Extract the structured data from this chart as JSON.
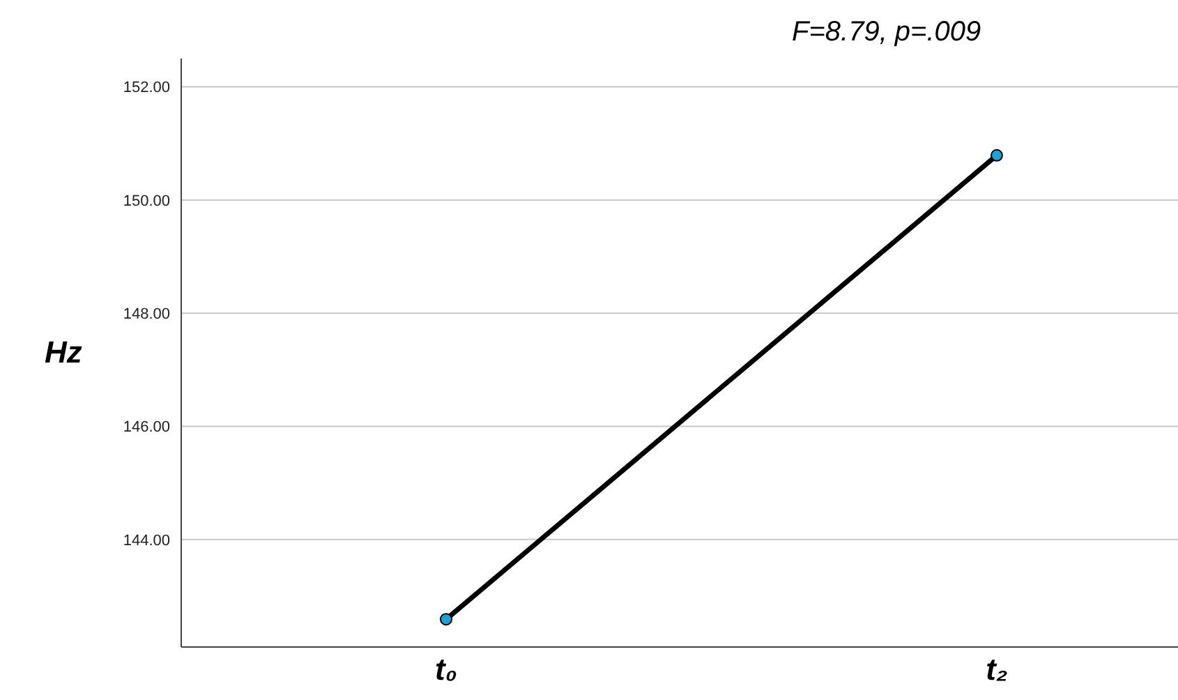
{
  "chart_data": {
    "type": "line",
    "ylabel": "Hz",
    "annotations": [
      "F=8.79, p=.009"
    ],
    "categories": [
      "t₀",
      "t₂"
    ],
    "series": [
      {
        "color": "#000000",
        "values": [
          142.59,
          150.79
        ]
      }
    ],
    "ylim": [
      142.1,
      152.5
    ],
    "yticks": [
      {
        "value": 144,
        "label": "144.00"
      },
      {
        "value": 146,
        "label": "146.00"
      },
      {
        "value": 148,
        "label": "148.00"
      },
      {
        "value": 150,
        "label": "150.00"
      },
      {
        "value": 152,
        "label": "152.00"
      }
    ],
    "grid": "y",
    "marker": "circle",
    "line_style": "solid"
  }
}
